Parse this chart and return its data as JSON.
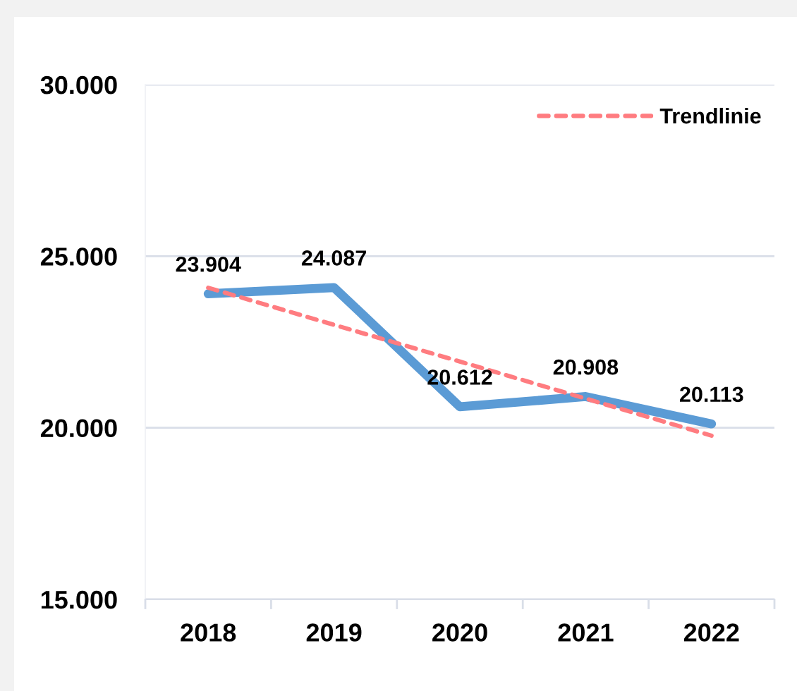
{
  "chart_data": {
    "type": "line",
    "categories": [
      "2018",
      "2019",
      "2020",
      "2021",
      "2022"
    ],
    "series": [
      {
        "color": "#5b9bd5",
        "values": [
          23904,
          24087,
          20612,
          20908,
          20113
        ],
        "value_labels": [
          "23.904",
          "24.087",
          "20.612",
          "20.908",
          "20.113"
        ]
      },
      {
        "name": "Trendlinie",
        "color": "#ff7c80",
        "line_style": "dashed",
        "values": [
          24080,
          23000,
          21930,
          20850,
          19770
        ]
      }
    ],
    "ylim": [
      15000,
      30000
    ],
    "yticks": [
      {
        "value": 15000,
        "label": "15.000"
      },
      {
        "value": 20000,
        "label": "20.000"
      },
      {
        "value": 25000,
        "label": "25.000"
      },
      {
        "value": 30000,
        "label": "30.000"
      }
    ],
    "grid": "y",
    "legend": "top right",
    "line_style": "solid"
  }
}
